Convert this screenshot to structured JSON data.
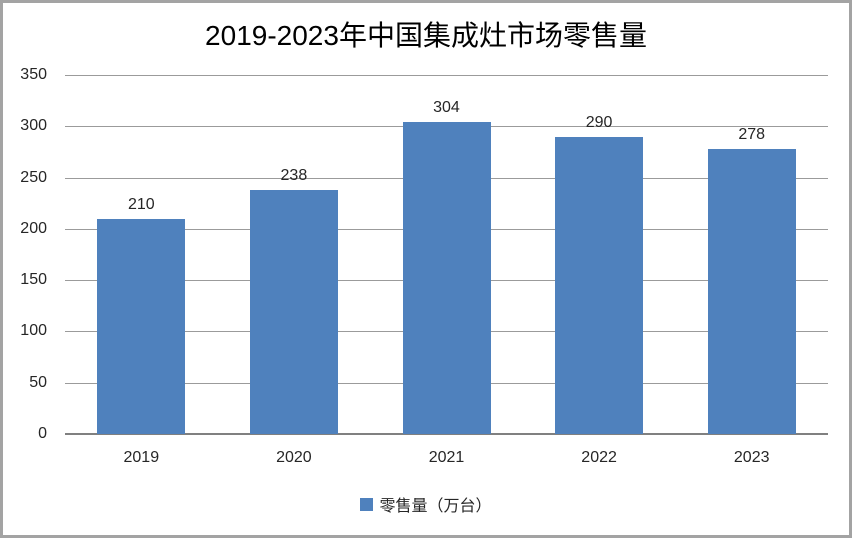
{
  "chart_data": {
    "type": "bar",
    "title": "2019-2023年中国集成灶市场零售量",
    "categories": [
      "2019",
      "2020",
      "2021",
      "2022",
      "2023"
    ],
    "series": [
      {
        "name": "零售量（万台）",
        "values": [
          210,
          238,
          304,
          290,
          278
        ]
      }
    ],
    "xlabel": "",
    "ylabel": "",
    "ylim": [
      0,
      350
    ],
    "yticks": [
      0,
      50,
      100,
      150,
      200,
      250,
      300,
      350
    ],
    "grid": true,
    "data_labels": true,
    "legend_position": "bottom",
    "bar_color": "#4f81bd",
    "gridline_color": "#9b9b9b",
    "axis_line_color": "#808080",
    "text_color": "#262626",
    "frame_border_color": "#a3a3a3",
    "background_color": "#ffffff"
  }
}
